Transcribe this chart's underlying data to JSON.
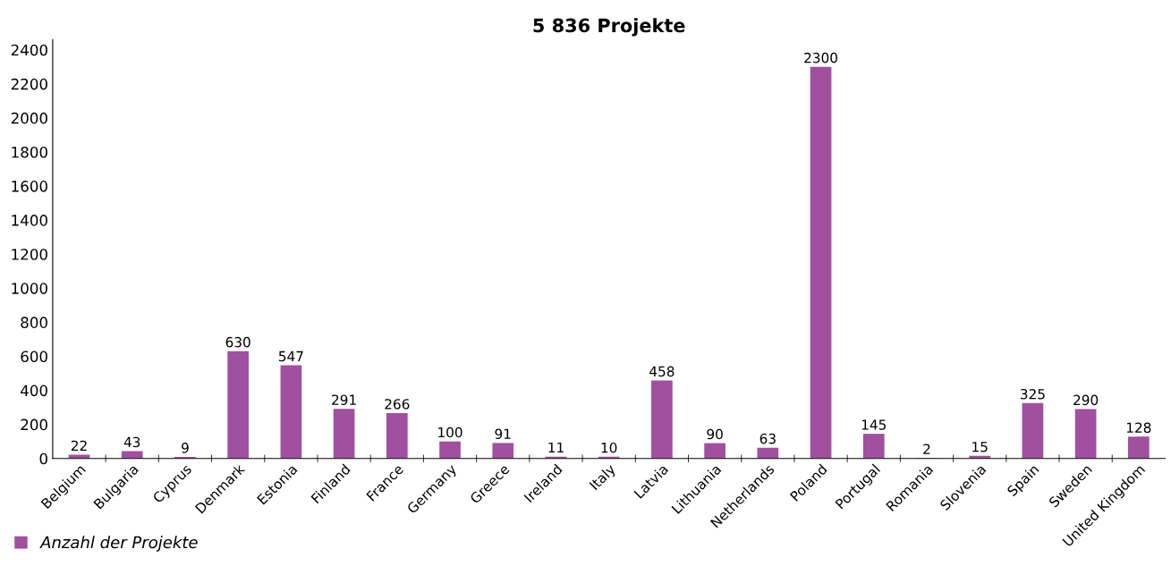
{
  "chart_data": {
    "type": "bar",
    "title": "5 836 Projekte",
    "categories": [
      "Belgium",
      "Bulgaria",
      "Cyprus",
      "Denmark",
      "Estonia",
      "Finland",
      "France",
      "Germany",
      "Greece",
      "Ireland",
      "Italy",
      "Latvia",
      "Lithuania",
      "Netherlands",
      "Poland",
      "Portugal",
      "Romania",
      "Slovenia",
      "Spain",
      "Sweden",
      "United Kingdom"
    ],
    "series": [
      {
        "name": "Anzahl der Projekte",
        "color": "#a0509f",
        "values": [
          22,
          43,
          9,
          630,
          547,
          291,
          266,
          100,
          91,
          11,
          10,
          458,
          90,
          63,
          2300,
          145,
          2,
          15,
          325,
          290,
          128
        ]
      }
    ],
    "ylim": [
      0,
      2460
    ],
    "yticks": [
      0,
      200,
      400,
      600,
      800,
      1000,
      1200,
      1400,
      1600,
      1800,
      2000,
      2200,
      2400
    ],
    "data_labels": true,
    "grid": false,
    "legend": "bottom left"
  }
}
